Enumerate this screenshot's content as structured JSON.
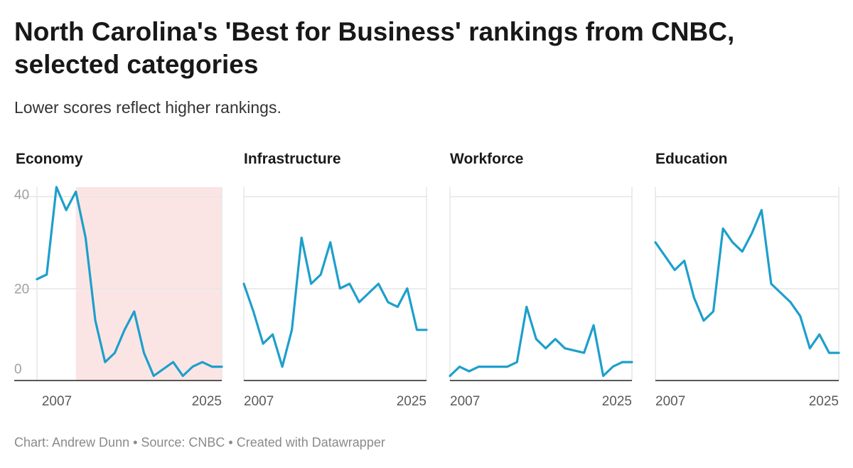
{
  "header": {
    "title": "North Carolina's 'Best for Business' rankings from CNBC, selected categories",
    "subtitle": "Lower scores reflect higher rankings."
  },
  "footer": {
    "credit": "Chart: Andrew Dunn • Source: CNBC • Created with Datawrapper"
  },
  "colors": {
    "line": "#1d9fcc",
    "highlight": "#fbe5e4",
    "grid": "#e6e6e6",
    "baseline": "#222222"
  },
  "chart_data": [
    {
      "type": "line",
      "title": "Economy",
      "x": [
        2007,
        2008,
        2009,
        2010,
        2011,
        2012,
        2013,
        2014,
        2015,
        2016,
        2017,
        2018,
        2019,
        2021,
        2022,
        2023,
        2024,
        2025,
        2026
      ],
      "values": [
        22,
        23,
        42,
        37,
        41,
        31,
        13,
        4,
        6,
        11,
        15,
        6,
        1,
        4,
        1,
        3,
        4,
        3,
        3
      ],
      "xticks": [
        "2007",
        "2025"
      ],
      "yticks": [
        "40",
        "20",
        "0"
      ],
      "ylim": [
        0,
        42
      ],
      "shaded_region": [
        2011,
        2026
      ],
      "grid": true
    },
    {
      "type": "line",
      "title": "Infrastructure",
      "x": [
        2007,
        2008,
        2009,
        2010,
        2011,
        2012,
        2013,
        2014,
        2015,
        2016,
        2017,
        2018,
        2019,
        2021,
        2022,
        2023,
        2024,
        2025,
        2026
      ],
      "values": [
        21,
        15,
        8,
        10,
        3,
        11,
        31,
        21,
        23,
        30,
        20,
        21,
        17,
        21,
        17,
        16,
        20,
        11,
        11
      ],
      "xticks": [
        "2007",
        "2025"
      ],
      "ylim": [
        0,
        42
      ],
      "grid": true
    },
    {
      "type": "line",
      "title": "Workforce",
      "x": [
        2007,
        2008,
        2009,
        2010,
        2011,
        2012,
        2013,
        2014,
        2015,
        2016,
        2017,
        2018,
        2019,
        2021,
        2022,
        2023,
        2024,
        2025,
        2026
      ],
      "values": [
        1,
        3,
        2,
        3,
        3,
        3,
        3,
        4,
        16,
        9,
        7,
        9,
        7,
        6,
        12,
        1,
        3,
        4,
        4
      ],
      "xticks": [
        "2007",
        "2025"
      ],
      "ylim": [
        0,
        42
      ],
      "grid": true
    },
    {
      "type": "line",
      "title": "Education",
      "x": [
        2007,
        2008,
        2009,
        2010,
        2011,
        2012,
        2013,
        2014,
        2015,
        2016,
        2017,
        2018,
        2019,
        2021,
        2022,
        2023,
        2024,
        2025,
        2026
      ],
      "values": [
        30,
        27,
        24,
        26,
        18,
        13,
        15,
        33,
        30,
        28,
        32,
        37,
        21,
        17,
        14,
        7,
        10,
        6,
        6
      ],
      "xticks": [
        "2007",
        "2025"
      ],
      "ylim": [
        0,
        42
      ],
      "grid": true
    }
  ]
}
